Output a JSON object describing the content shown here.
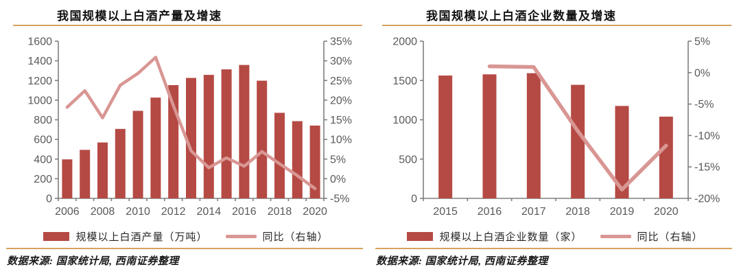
{
  "colors": {
    "bar": "#B54A44",
    "line": "#D99693",
    "gold_rule": "#D5A35C",
    "axis_line": "#7F7F7F",
    "axis_label": "#595959",
    "title_text": "#111111",
    "source_text": "#1A1A1A"
  },
  "panels": [
    {
      "title": "我国规模以上白酒产量及增速",
      "legend_bar_label": "规模以上白酒产量（万吨）",
      "legend_line_label": "同比（右轴）",
      "source": "数据来源: 国家统计局, 西南证券整理"
    },
    {
      "title": "我国规模以上白酒企业数量及增速",
      "legend_bar_label": "规模以上白酒企业数量（家）",
      "legend_line_label": "同比（右轴）",
      "source": "数据来源: 国家统计局, 西南证券整理"
    }
  ],
  "chart_data": [
    {
      "type": "bar",
      "title": "我国规模以上白酒产量及增速",
      "categories": [
        "2006",
        "2007",
        "2008",
        "2009",
        "2010",
        "2011",
        "2012",
        "2013",
        "2014",
        "2015",
        "2016",
        "2017",
        "2018",
        "2019",
        "2020"
      ],
      "series": [
        {
          "name": "规模以上白酒产量（万吨）",
          "type": "bar",
          "axis": "left",
          "values": [
            397,
            494,
            569,
            707,
            891,
            1026,
            1153,
            1226,
            1257,
            1313,
            1358,
            1198,
            871,
            786,
            741
          ]
        },
        {
          "name": "同比（右轴）",
          "type": "line",
          "axis": "right",
          "values": [
            18.2,
            22.4,
            15.5,
            23.8,
            26.8,
            30.9,
            18.6,
            7.1,
            2.8,
            5.3,
            3.2,
            6.9,
            3.8,
            0.8,
            -2.5
          ]
        }
      ],
      "left_axis": {
        "min": 0,
        "max": 1600,
        "step": 200,
        "suffix": ""
      },
      "right_axis": {
        "min": -5,
        "max": 35,
        "step": 5,
        "suffix": "%"
      },
      "x_label_every": 2,
      "grid": false,
      "legend_position": "bottom"
    },
    {
      "type": "bar",
      "title": "我国规模以上白酒企业数量及增速",
      "categories": [
        "2015",
        "2016",
        "2017",
        "2018",
        "2019",
        "2020"
      ],
      "series": [
        {
          "name": "规模以上白酒企业数量（家）",
          "type": "bar",
          "axis": "left",
          "values": [
            1563,
            1578,
            1593,
            1445,
            1176,
            1040
          ]
        },
        {
          "name": "同比（右轴）",
          "type": "line",
          "axis": "right",
          "values": [
            null,
            1.0,
            0.9,
            -9.3,
            -18.6,
            -11.6
          ]
        }
      ],
      "left_axis": {
        "min": 0,
        "max": 2000,
        "step": 500,
        "suffix": ""
      },
      "right_axis": {
        "min": -20,
        "max": 5,
        "step": 5,
        "suffix": "%"
      },
      "x_label_every": 1,
      "grid": false,
      "legend_position": "bottom"
    }
  ]
}
